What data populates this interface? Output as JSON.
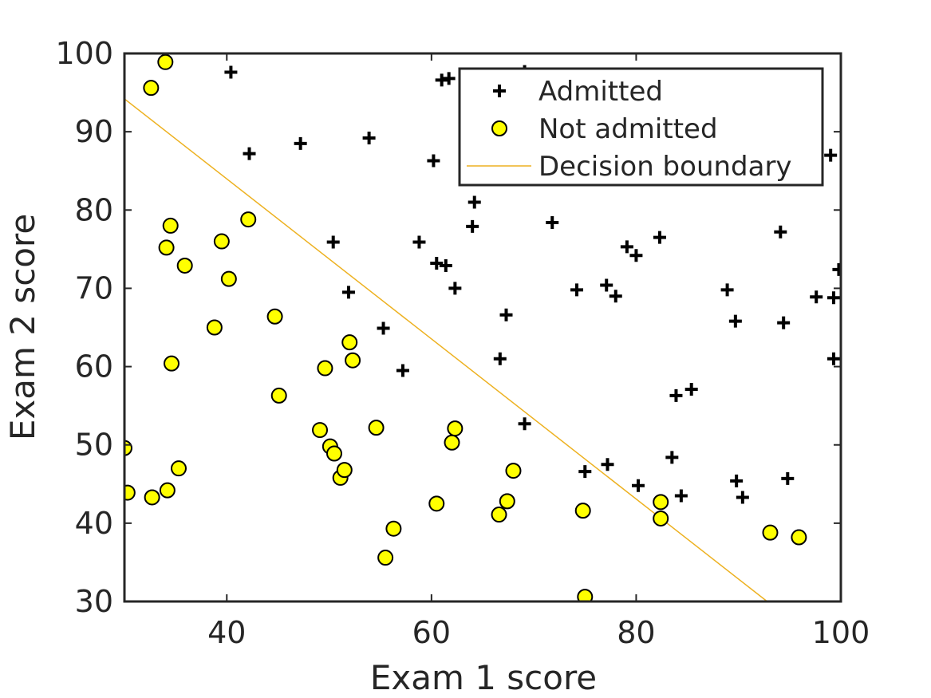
{
  "chart_data": {
    "type": "scatter",
    "xlabel": "Exam 1 score",
    "ylabel": "Exam 2 score",
    "xlim": [
      30,
      100
    ],
    "ylim": [
      30,
      100
    ],
    "xticks": [
      "40",
      "60",
      "80",
      "100"
    ],
    "yticks": [
      "30",
      "40",
      "50",
      "60",
      "70",
      "80",
      "90",
      "100"
    ],
    "grid": false,
    "legend_location": "top-right",
    "series": [
      {
        "name": "Admitted",
        "marker": "plus",
        "color": "#000000",
        "points": [
          [
            40.4,
            97.6
          ],
          [
            42.2,
            87.2
          ],
          [
            47.2,
            88.5
          ],
          [
            53.9,
            89.2
          ],
          [
            61.0,
            96.6
          ],
          [
            61.7,
            96.8
          ],
          [
            69.1,
            97.7
          ],
          [
            60.2,
            86.3
          ],
          [
            64.2,
            81.0
          ],
          [
            64.0,
            77.9
          ],
          [
            71.8,
            78.4
          ],
          [
            50.4,
            75.9
          ],
          [
            58.8,
            75.9
          ],
          [
            60.5,
            73.2
          ],
          [
            61.4,
            72.9
          ],
          [
            62.3,
            70.0
          ],
          [
            51.9,
            69.5
          ],
          [
            74.2,
            69.8
          ],
          [
            77.1,
            70.4
          ],
          [
            78.0,
            69.0
          ],
          [
            79.1,
            75.3
          ],
          [
            80.0,
            74.2
          ],
          [
            82.3,
            76.5
          ],
          [
            94.1,
            77.2
          ],
          [
            88.9,
            69.8
          ],
          [
            97.6,
            68.9
          ],
          [
            99.3,
            68.8
          ],
          [
            99.8,
            72.4
          ],
          [
            89.7,
            65.8
          ],
          [
            94.4,
            65.6
          ],
          [
            67.3,
            66.6
          ],
          [
            55.3,
            64.9
          ],
          [
            57.2,
            59.5
          ],
          [
            66.7,
            61.0
          ],
          [
            99.3,
            61.0
          ],
          [
            83.9,
            56.3
          ],
          [
            85.4,
            57.1
          ],
          [
            69.1,
            52.7
          ],
          [
            75.0,
            46.6
          ],
          [
            77.2,
            47.5
          ],
          [
            80.2,
            44.8
          ],
          [
            83.5,
            48.4
          ],
          [
            84.4,
            43.5
          ],
          [
            89.8,
            45.4
          ],
          [
            90.4,
            43.3
          ],
          [
            94.8,
            45.7
          ],
          [
            99.0,
            87.0
          ]
        ]
      },
      {
        "name": "Not admitted",
        "marker": "circle",
        "color": "#ffff00",
        "points": [
          [
            32.6,
            95.6
          ],
          [
            34.0,
            98.9
          ],
          [
            34.5,
            78.0
          ],
          [
            34.1,
            75.2
          ],
          [
            35.9,
            72.9
          ],
          [
            39.5,
            76.0
          ],
          [
            40.2,
            71.2
          ],
          [
            42.1,
            78.8
          ],
          [
            38.8,
            65.0
          ],
          [
            44.7,
            66.4
          ],
          [
            34.6,
            60.4
          ],
          [
            49.6,
            59.8
          ],
          [
            52.0,
            63.1
          ],
          [
            52.3,
            60.8
          ],
          [
            45.1,
            56.3
          ],
          [
            30.0,
            49.6
          ],
          [
            30.3,
            43.9
          ],
          [
            32.7,
            43.3
          ],
          [
            34.2,
            44.2
          ],
          [
            35.3,
            47.0
          ],
          [
            49.1,
            51.9
          ],
          [
            50.1,
            49.8
          ],
          [
            50.5,
            48.9
          ],
          [
            51.1,
            45.8
          ],
          [
            51.5,
            46.8
          ],
          [
            54.6,
            52.2
          ],
          [
            62.0,
            50.3
          ],
          [
            62.3,
            52.1
          ],
          [
            56.3,
            39.3
          ],
          [
            55.5,
            35.6
          ],
          [
            60.5,
            42.5
          ],
          [
            66.6,
            41.1
          ],
          [
            67.4,
            42.8
          ],
          [
            68.0,
            46.7
          ],
          [
            74.8,
            41.6
          ],
          [
            75.0,
            30.6
          ],
          [
            82.4,
            42.7
          ],
          [
            82.4,
            40.6
          ],
          [
            93.1,
            38.8
          ],
          [
            95.9,
            38.2
          ]
        ]
      },
      {
        "name": "Decision boundary",
        "marker": "line",
        "color": "#edb120",
        "points": [
          [
            30.0,
            94.2
          ],
          [
            92.8,
            30.0
          ]
        ]
      }
    ]
  }
}
